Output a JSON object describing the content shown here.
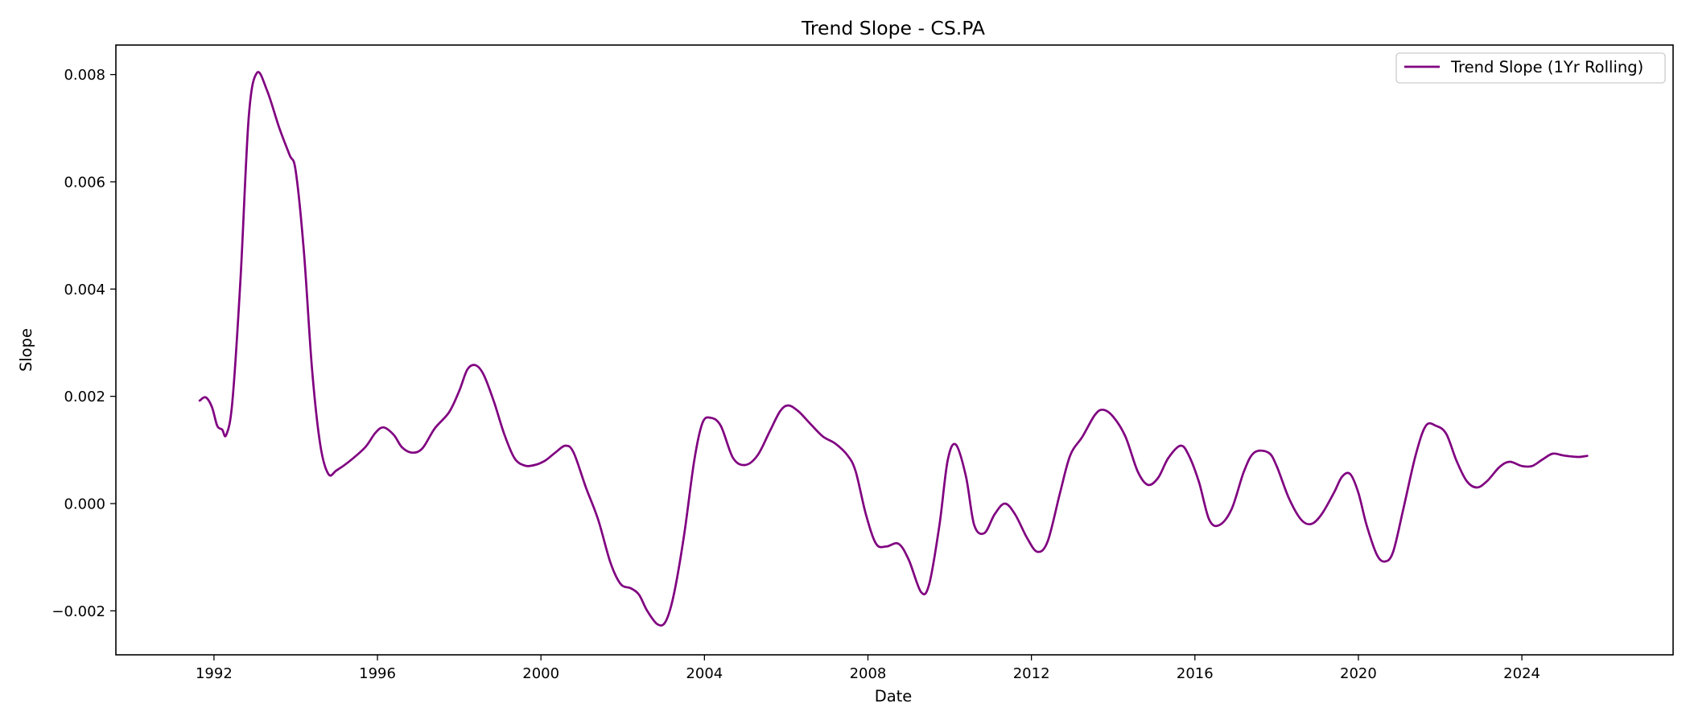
{
  "chart_data": {
    "type": "line",
    "title": "Trend Slope - CS.PA",
    "xlabel": "Date",
    "ylabel": "Slope",
    "xlim": [
      1989.6,
      2027.7
    ],
    "ylim": [
      -0.00282,
      0.00855
    ],
    "x_ticks": [
      1992,
      1996,
      2000,
      2004,
      2008,
      2012,
      2016,
      2020,
      2024
    ],
    "x_tick_labels": [
      "1992",
      "1996",
      "2000",
      "2004",
      "2008",
      "2012",
      "2016",
      "2020",
      "2024"
    ],
    "y_ticks": [
      -0.002,
      0.0,
      0.002,
      0.004,
      0.006,
      0.008
    ],
    "y_tick_labels": [
      "−0.002",
      "0.000",
      "0.002",
      "0.004",
      "0.006",
      "0.008"
    ],
    "grid": false,
    "legend_position": "top-right",
    "series": [
      {
        "name": "Trend Slope (1Yr Rolling)",
        "color": "#800080",
        "points": [
          [
            1991.65,
            0.00192
          ],
          [
            1991.8,
            0.00198
          ],
          [
            1991.95,
            0.0018
          ],
          [
            1992.08,
            0.00145
          ],
          [
            1992.2,
            0.00138
          ],
          [
            1992.3,
            0.00128
          ],
          [
            1992.45,
            0.0019
          ],
          [
            1992.65,
            0.0042
          ],
          [
            1992.85,
            0.0072
          ],
          [
            1993.05,
            0.00803
          ],
          [
            1993.3,
            0.0077
          ],
          [
            1993.6,
            0.007
          ],
          [
            1993.85,
            0.0065
          ],
          [
            1994.0,
            0.0062
          ],
          [
            1994.2,
            0.0047
          ],
          [
            1994.4,
            0.0025
          ],
          [
            1994.6,
            0.0011
          ],
          [
            1994.8,
            0.00055
          ],
          [
            1995.0,
            0.00062
          ],
          [
            1995.3,
            0.00078
          ],
          [
            1995.7,
            0.00105
          ],
          [
            1995.95,
            0.00132
          ],
          [
            1996.15,
            0.00142
          ],
          [
            1996.4,
            0.00128
          ],
          [
            1996.6,
            0.00105
          ],
          [
            1996.85,
            0.00095
          ],
          [
            1997.1,
            0.00103
          ],
          [
            1997.4,
            0.0014
          ],
          [
            1997.75,
            0.0017
          ],
          [
            1998.0,
            0.0021
          ],
          [
            1998.2,
            0.0025
          ],
          [
            1998.4,
            0.00258
          ],
          [
            1998.6,
            0.0024
          ],
          [
            1998.85,
            0.0019
          ],
          [
            1999.1,
            0.0013
          ],
          [
            1999.35,
            0.00085
          ],
          [
            1999.6,
            0.00071
          ],
          [
            1999.85,
            0.00072
          ],
          [
            2000.1,
            0.0008
          ],
          [
            2000.35,
            0.00095
          ],
          [
            2000.6,
            0.00108
          ],
          [
            2000.8,
            0.00095
          ],
          [
            2001.1,
            0.0003
          ],
          [
            2001.4,
            -0.0003
          ],
          [
            2001.7,
            -0.0011
          ],
          [
            2001.95,
            -0.0015
          ],
          [
            2002.2,
            -0.00158
          ],
          [
            2002.4,
            -0.0017
          ],
          [
            2002.6,
            -0.002
          ],
          [
            2002.85,
            -0.00225
          ],
          [
            2003.05,
            -0.0022
          ],
          [
            2003.25,
            -0.0017
          ],
          [
            2003.5,
            -0.0006
          ],
          [
            2003.75,
            0.0008
          ],
          [
            2003.95,
            0.0015
          ],
          [
            2004.15,
            0.0016
          ],
          [
            2004.4,
            0.00145
          ],
          [
            2004.7,
            0.00085
          ],
          [
            2005.0,
            0.00072
          ],
          [
            2005.3,
            0.0009
          ],
          [
            2005.6,
            0.00135
          ],
          [
            2005.85,
            0.00172
          ],
          [
            2006.05,
            0.00183
          ],
          [
            2006.3,
            0.00172
          ],
          [
            2006.6,
            0.00148
          ],
          [
            2006.9,
            0.00125
          ],
          [
            2007.2,
            0.00112
          ],
          [
            2007.5,
            0.0009
          ],
          [
            2007.7,
            0.0006
          ],
          [
            2007.95,
            -0.0002
          ],
          [
            2008.2,
            -0.00075
          ],
          [
            2008.45,
            -0.0008
          ],
          [
            2008.75,
            -0.00075
          ],
          [
            2009.0,
            -0.00105
          ],
          [
            2009.3,
            -0.00165
          ],
          [
            2009.5,
            -0.0015
          ],
          [
            2009.75,
            -0.0004
          ],
          [
            2009.95,
            0.0008
          ],
          [
            2010.15,
            0.0011
          ],
          [
            2010.4,
            0.0005
          ],
          [
            2010.6,
            -0.0004
          ],
          [
            2010.85,
            -0.00055
          ],
          [
            2011.1,
            -0.0002
          ],
          [
            2011.35,
            0.0
          ],
          [
            2011.6,
            -0.0002
          ],
          [
            2011.9,
            -0.00065
          ],
          [
            2012.15,
            -0.0009
          ],
          [
            2012.4,
            -0.0007
          ],
          [
            2012.7,
            0.0002
          ],
          [
            2012.95,
            0.0009
          ],
          [
            2013.25,
            0.00125
          ],
          [
            2013.55,
            0.00165
          ],
          [
            2013.75,
            0.00175
          ],
          [
            2014.0,
            0.00162
          ],
          [
            2014.3,
            0.00125
          ],
          [
            2014.6,
            0.0006
          ],
          [
            2014.85,
            0.00035
          ],
          [
            2015.1,
            0.00048
          ],
          [
            2015.35,
            0.00085
          ],
          [
            2015.65,
            0.00108
          ],
          [
            2015.85,
            0.0009
          ],
          [
            2016.1,
            0.0004
          ],
          [
            2016.35,
            -0.0003
          ],
          [
            2016.6,
            -0.0004
          ],
          [
            2016.9,
            -0.0001
          ],
          [
            2017.2,
            0.0006
          ],
          [
            2017.45,
            0.00095
          ],
          [
            2017.8,
            0.00095
          ],
          [
            2018.0,
            0.0007
          ],
          [
            2018.3,
            0.0001
          ],
          [
            2018.6,
            -0.0003
          ],
          [
            2018.85,
            -0.00038
          ],
          [
            2019.1,
            -0.0002
          ],
          [
            2019.4,
            0.0002
          ],
          [
            2019.6,
            0.0005
          ],
          [
            2019.8,
            0.00055
          ],
          [
            2020.0,
            0.0002
          ],
          [
            2020.2,
            -0.0004
          ],
          [
            2020.45,
            -0.00095
          ],
          [
            2020.65,
            -0.00108
          ],
          [
            2020.85,
            -0.0009
          ],
          [
            2021.1,
            -0.0001
          ],
          [
            2021.4,
            0.0009
          ],
          [
            2021.65,
            0.00145
          ],
          [
            2021.9,
            0.00145
          ],
          [
            2022.15,
            0.0013
          ],
          [
            2022.4,
            0.0008
          ],
          [
            2022.65,
            0.00042
          ],
          [
            2022.9,
            0.0003
          ],
          [
            2023.15,
            0.00042
          ],
          [
            2023.45,
            0.00068
          ],
          [
            2023.7,
            0.00078
          ],
          [
            2024.0,
            0.0007
          ],
          [
            2024.25,
            0.0007
          ],
          [
            2024.5,
            0.00082
          ],
          [
            2024.75,
            0.00093
          ],
          [
            2025.0,
            0.0009
          ],
          [
            2025.2,
            0.00088
          ],
          [
            2025.4,
            0.00087
          ],
          [
            2025.6,
            0.00089
          ]
        ]
      }
    ]
  }
}
